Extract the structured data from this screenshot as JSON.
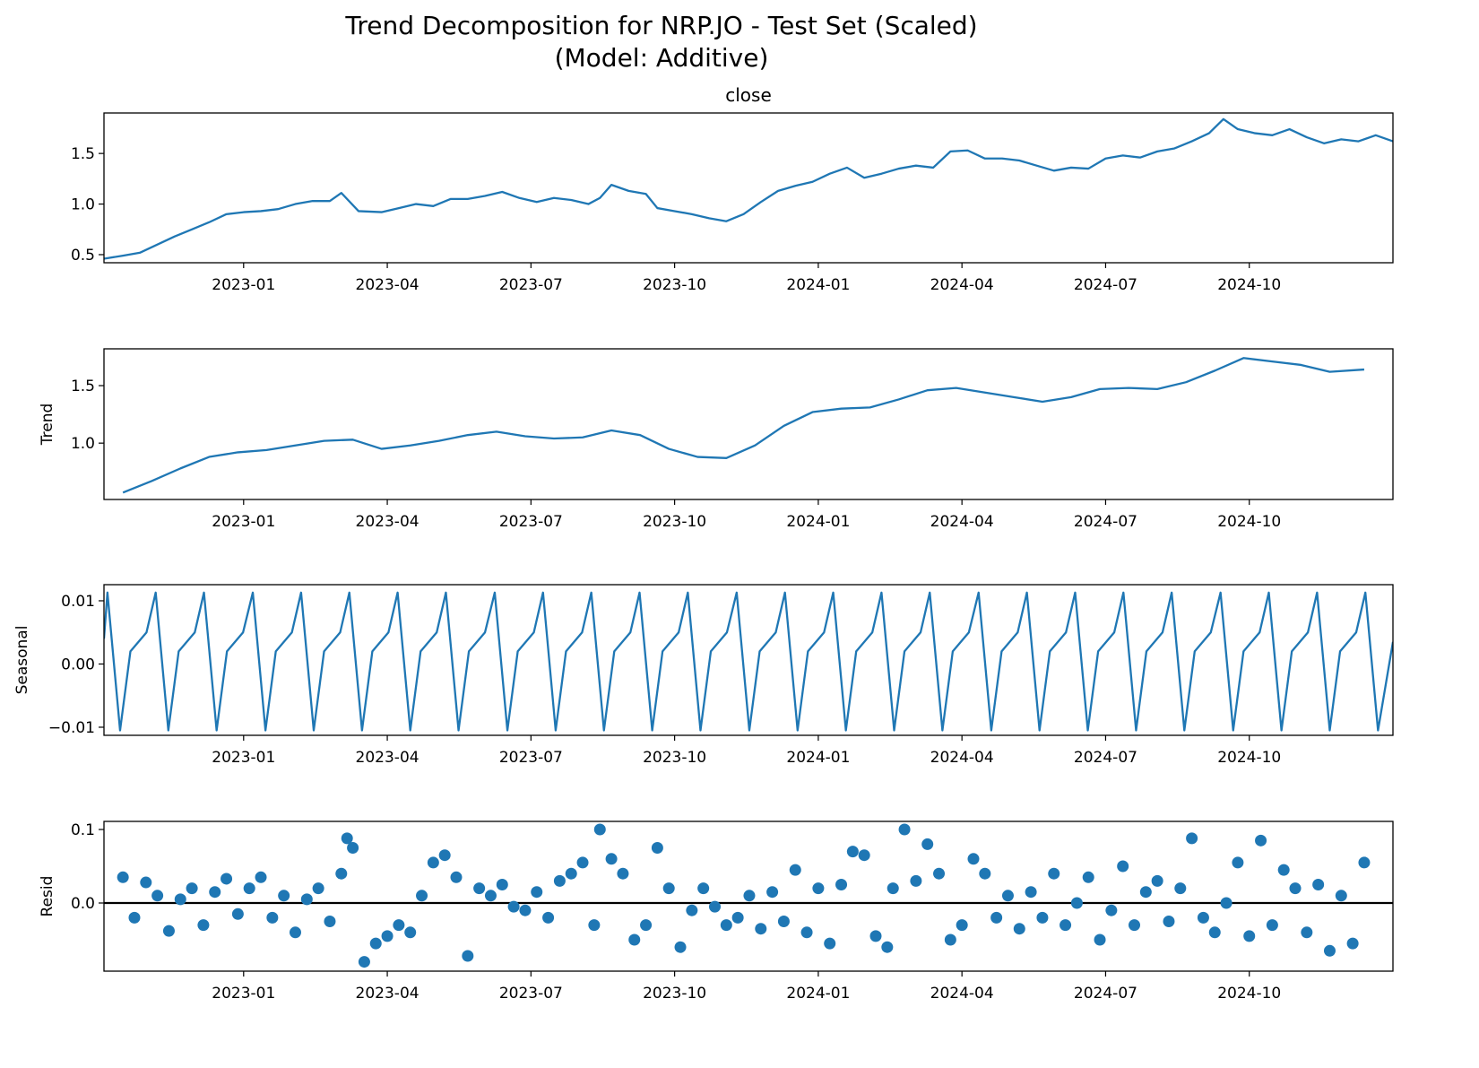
{
  "title": [
    "Trend Decomposition for NRP.JO - Test Set (Scaled)",
    "(Model: Additive)"
  ],
  "chart_data": [
    {
      "type": "line",
      "title": "close",
      "color": "#1f77b4",
      "xlim": [
        2022.757,
        2025.0
      ],
      "xticks": [
        {
          "value": 2023.0,
          "label": "2023-01"
        },
        {
          "value": 2023.25,
          "label": "2023-04"
        },
        {
          "value": 2023.5,
          "label": "2023-07"
        },
        {
          "value": 2023.75,
          "label": "2023-10"
        },
        {
          "value": 2024.0,
          "label": "2024-01"
        },
        {
          "value": 2024.25,
          "label": "2024-04"
        },
        {
          "value": 2024.5,
          "label": "2024-07"
        },
        {
          "value": 2024.75,
          "label": "2024-10"
        }
      ],
      "ylim": [
        0.42,
        1.9
      ],
      "yticks": [
        {
          "value": 0.5,
          "label": "0.5"
        },
        {
          "value": 1.0,
          "label": "1.0"
        },
        {
          "value": 1.5,
          "label": "1.5"
        }
      ],
      "x": [
        2022.757,
        2022.79,
        2022.82,
        2022.85,
        2022.88,
        2022.91,
        2022.94,
        2022.97,
        2023.0,
        2023.03,
        2023.06,
        2023.09,
        2023.12,
        2023.15,
        2023.17,
        2023.2,
        2023.24,
        2023.27,
        2023.3,
        2023.33,
        2023.36,
        2023.39,
        2023.42,
        2023.45,
        2023.48,
        2023.51,
        2023.54,
        2023.57,
        2023.6,
        2023.62,
        2023.64,
        2023.67,
        2023.7,
        2023.72,
        2023.75,
        2023.78,
        2023.81,
        2023.84,
        2023.87,
        2023.9,
        2023.93,
        2023.96,
        2023.99,
        2024.02,
        2024.05,
        2024.08,
        2024.11,
        2024.14,
        2024.17,
        2024.2,
        2024.23,
        2024.26,
        2024.29,
        2024.32,
        2024.35,
        2024.38,
        2024.41,
        2024.44,
        2024.47,
        2024.5,
        2024.53,
        2024.56,
        2024.59,
        2024.62,
        2024.65,
        2024.68,
        2024.705,
        2024.73,
        2024.76,
        2024.79,
        2024.82,
        2024.85,
        2024.88,
        2024.91,
        2024.94,
        2024.97,
        2025.0
      ],
      "values": [
        0.46,
        0.49,
        0.52,
        0.6,
        0.68,
        0.75,
        0.82,
        0.9,
        0.92,
        0.93,
        0.95,
        1.0,
        1.03,
        1.03,
        1.11,
        0.93,
        0.92,
        0.96,
        1.0,
        0.98,
        1.05,
        1.05,
        1.08,
        1.12,
        1.06,
        1.02,
        1.06,
        1.04,
        1.0,
        1.06,
        1.19,
        1.13,
        1.1,
        0.96,
        0.93,
        0.9,
        0.86,
        0.83,
        0.9,
        1.02,
        1.13,
        1.18,
        1.22,
        1.3,
        1.36,
        1.26,
        1.3,
        1.35,
        1.38,
        1.36,
        1.52,
        1.53,
        1.45,
        1.45,
        1.43,
        1.38,
        1.33,
        1.36,
        1.35,
        1.45,
        1.48,
        1.46,
        1.52,
        1.55,
        1.62,
        1.7,
        1.84,
        1.74,
        1.7,
        1.68,
        1.74,
        1.66,
        1.6,
        1.64,
        1.62,
        1.68,
        1.62
      ]
    },
    {
      "type": "line",
      "ylabel": "Trend",
      "color": "#1f77b4",
      "xlim": [
        2022.757,
        2025.0
      ],
      "xticks": [
        {
          "value": 2023.0,
          "label": "2023-01"
        },
        {
          "value": 2023.25,
          "label": "2023-04"
        },
        {
          "value": 2023.5,
          "label": "2023-07"
        },
        {
          "value": 2023.75,
          "label": "2023-10"
        },
        {
          "value": 2024.0,
          "label": "2024-01"
        },
        {
          "value": 2024.25,
          "label": "2024-04"
        },
        {
          "value": 2024.5,
          "label": "2024-07"
        },
        {
          "value": 2024.75,
          "label": "2024-10"
        }
      ],
      "ylim": [
        0.51,
        1.82
      ],
      "yticks": [
        {
          "value": 1.0,
          "label": "1.0"
        },
        {
          "value": 1.5,
          "label": "1.5"
        }
      ],
      "x": [
        2022.79,
        2022.84,
        2022.89,
        2022.94,
        2022.99,
        2023.04,
        2023.09,
        2023.14,
        2023.19,
        2023.24,
        2023.29,
        2023.34,
        2023.39,
        2023.44,
        2023.49,
        2023.54,
        2023.59,
        2023.64,
        2023.69,
        2023.74,
        2023.79,
        2023.84,
        2023.89,
        2023.94,
        2023.99,
        2024.04,
        2024.09,
        2024.14,
        2024.19,
        2024.24,
        2024.29,
        2024.34,
        2024.39,
        2024.44,
        2024.49,
        2024.54,
        2024.59,
        2024.64,
        2024.69,
        2024.74,
        2024.79,
        2024.84,
        2024.89,
        2024.95
      ],
      "values": [
        0.57,
        0.67,
        0.78,
        0.88,
        0.92,
        0.94,
        0.98,
        1.02,
        1.03,
        0.95,
        0.98,
        1.02,
        1.07,
        1.1,
        1.06,
        1.04,
        1.05,
        1.11,
        1.07,
        0.95,
        0.88,
        0.87,
        0.98,
        1.15,
        1.27,
        1.3,
        1.31,
        1.38,
        1.46,
        1.48,
        1.44,
        1.4,
        1.36,
        1.4,
        1.47,
        1.48,
        1.47,
        1.53,
        1.63,
        1.74,
        1.71,
        1.68,
        1.62,
        1.64
      ]
    },
    {
      "type": "line",
      "ylabel": "Seasonal",
      "color": "#1f77b4",
      "xlim": [
        2022.757,
        2025.0
      ],
      "xticks": [
        {
          "value": 2023.0,
          "label": "2023-01"
        },
        {
          "value": 2023.25,
          "label": "2023-04"
        },
        {
          "value": 2023.5,
          "label": "2023-07"
        },
        {
          "value": 2023.75,
          "label": "2023-10"
        },
        {
          "value": 2024.0,
          "label": "2024-01"
        },
        {
          "value": 2024.25,
          "label": "2024-04"
        },
        {
          "value": 2024.5,
          "label": "2024-07"
        },
        {
          "value": 2024.75,
          "label": "2024-10"
        }
      ],
      "ylim": [
        -0.01128,
        0.01255
      ],
      "yticks": [
        {
          "value": -0.01,
          "label": "−0.01"
        },
        {
          "value": 0.0,
          "label": "0.00"
        },
        {
          "value": 0.01,
          "label": "0.01"
        }
      ],
      "x": [
        2022.757,
        2022.763,
        2022.785,
        2022.803,
        2022.831,
        2022.847,
        2022.869,
        2022.887,
        2022.915,
        2022.931,
        2022.953,
        2022.971,
        2022.999,
        2023.016,
        2023.038,
        2023.056,
        2023.084,
        2023.1,
        2023.122,
        2023.14,
        2023.168,
        2023.184,
        2023.206,
        2023.224,
        2023.252,
        2023.268,
        2023.29,
        2023.308,
        2023.336,
        2023.352,
        2023.374,
        2023.392,
        2023.42,
        2023.437,
        2023.459,
        2023.477,
        2023.505,
        2023.521,
        2023.543,
        2023.561,
        2023.589,
        2023.605,
        2023.627,
        2023.645,
        2023.673,
        2023.689,
        2023.711,
        2023.729,
        2023.757,
        2023.773,
        2023.795,
        2023.813,
        2023.841,
        2023.858,
        2023.88,
        2023.898,
        2023.926,
        2023.942,
        2023.964,
        2023.982,
        2024.01,
        2024.026,
        2024.048,
        2024.066,
        2024.094,
        2024.11,
        2024.132,
        2024.15,
        2024.178,
        2024.194,
        2024.216,
        2024.234,
        2024.262,
        2024.279,
        2024.301,
        2024.319,
        2024.347,
        2024.363,
        2024.385,
        2024.403,
        2024.431,
        2024.447,
        2024.469,
        2024.487,
        2024.515,
        2024.531,
        2024.553,
        2024.571,
        2024.599,
        2024.615,
        2024.637,
        2024.655,
        2024.683,
        2024.7,
        2024.722,
        2024.74,
        2024.768,
        2024.784,
        2024.806,
        2024.824,
        2024.852,
        2024.868,
        2024.89,
        2024.908,
        2024.936,
        2024.952,
        2024.974,
        2025.0
      ],
      "values": [
        0.004,
        0.0113,
        -0.0105,
        0.002,
        0.005,
        0.0113,
        -0.0105,
        0.002,
        0.005,
        0.0113,
        -0.0105,
        0.002,
        0.005,
        0.0113,
        -0.0105,
        0.002,
        0.005,
        0.0113,
        -0.0105,
        0.002,
        0.005,
        0.0113,
        -0.0105,
        0.002,
        0.005,
        0.0113,
        -0.0105,
        0.002,
        0.005,
        0.0113,
        -0.0105,
        0.002,
        0.005,
        0.0113,
        -0.0105,
        0.002,
        0.005,
        0.0113,
        -0.0105,
        0.002,
        0.005,
        0.0113,
        -0.0105,
        0.002,
        0.005,
        0.0113,
        -0.0105,
        0.002,
        0.005,
        0.0113,
        -0.0105,
        0.002,
        0.005,
        0.0113,
        -0.0105,
        0.002,
        0.005,
        0.0113,
        -0.0105,
        0.002,
        0.005,
        0.0113,
        -0.0105,
        0.002,
        0.005,
        0.0113,
        -0.0105,
        0.002,
        0.005,
        0.0113,
        -0.0105,
        0.002,
        0.005,
        0.0113,
        -0.0105,
        0.002,
        0.005,
        0.0113,
        -0.0105,
        0.002,
        0.005,
        0.0113,
        -0.0105,
        0.002,
        0.005,
        0.0113,
        -0.0105,
        0.002,
        0.005,
        0.0113,
        -0.0105,
        0.002,
        0.005,
        0.0113,
        -0.0105,
        0.002,
        0.005,
        0.0113,
        -0.0105,
        0.002,
        0.005,
        0.0113,
        -0.0105,
        0.002,
        0.005,
        0.0113,
        -0.0105,
        0.0035
      ]
    },
    {
      "type": "scatter",
      "ylabel": "Resid",
      "color": "#1f77b4",
      "hline": 0,
      "xlim": [
        2022.757,
        2025.0
      ],
      "xticks": [
        {
          "value": 2023.0,
          "label": "2023-01"
        },
        {
          "value": 2023.25,
          "label": "2023-04"
        },
        {
          "value": 2023.5,
          "label": "2023-07"
        },
        {
          "value": 2023.75,
          "label": "2023-10"
        },
        {
          "value": 2024.0,
          "label": "2024-01"
        },
        {
          "value": 2024.25,
          "label": "2024-04"
        },
        {
          "value": 2024.5,
          "label": "2024-07"
        },
        {
          "value": 2024.75,
          "label": "2024-10"
        }
      ],
      "ylim": [
        -0.0927,
        0.111
      ],
      "yticks": [
        {
          "value": 0.0,
          "label": "0.0"
        },
        0.1
      ],
      "x": [
        2022.79,
        2022.81,
        2022.83,
        2022.85,
        2022.87,
        2022.89,
        2022.91,
        2022.93,
        2022.95,
        2022.97,
        2022.99,
        2023.01,
        2023.03,
        2023.05,
        2023.07,
        2023.09,
        2023.11,
        2023.13,
        2023.15,
        2023.17,
        2023.18,
        2023.19,
        2023.21,
        2023.23,
        2023.25,
        2023.27,
        2023.29,
        2023.31,
        2023.33,
        2023.35,
        2023.37,
        2023.39,
        2023.41,
        2023.43,
        2023.45,
        2023.47,
        2023.49,
        2023.51,
        2023.53,
        2023.55,
        2023.57,
        2023.59,
        2023.61,
        2023.62,
        2023.64,
        2023.66,
        2023.68,
        2023.7,
        2023.72,
        2023.74,
        2023.76,
        2023.78,
        2023.8,
        2023.82,
        2023.84,
        2023.86,
        2023.88,
        2023.9,
        2023.92,
        2023.94,
        2023.96,
        2023.98,
        2024.0,
        2024.02,
        2024.04,
        2024.06,
        2024.08,
        2024.1,
        2024.12,
        2024.13,
        2024.15,
        2024.17,
        2024.19,
        2024.21,
        2024.23,
        2024.25,
        2024.27,
        2024.29,
        2024.31,
        2024.33,
        2024.35,
        2024.37,
        2024.39,
        2024.41,
        2024.43,
        2024.45,
        2024.47,
        2024.49,
        2024.51,
        2024.53,
        2024.55,
        2024.57,
        2024.59,
        2024.61,
        2024.63,
        2024.65,
        2024.67,
        2024.69,
        2024.71,
        2024.73,
        2024.75,
        2024.77,
        2024.79,
        2024.81,
        2024.83,
        2024.85,
        2024.87,
        2024.89,
        2024.91,
        2024.93,
        2024.95
      ],
      "values": [
        0.035,
        -0.02,
        0.028,
        0.01,
        -0.038,
        0.005,
        0.02,
        -0.03,
        0.015,
        0.033,
        -0.015,
        0.02,
        0.035,
        -0.02,
        0.01,
        -0.04,
        0.005,
        0.02,
        -0.025,
        0.04,
        0.088,
        0.075,
        -0.08,
        -0.055,
        -0.045,
        -0.03,
        -0.04,
        0.01,
        0.055,
        0.065,
        0.035,
        -0.072,
        0.02,
        0.01,
        0.025,
        -0.005,
        -0.01,
        0.015,
        -0.02,
        0.03,
        0.04,
        0.055,
        -0.03,
        0.1,
        0.06,
        0.04,
        -0.05,
        -0.03,
        0.075,
        0.02,
        -0.06,
        -0.01,
        0.02,
        -0.005,
        -0.03,
        -0.02,
        0.01,
        -0.035,
        0.015,
        -0.025,
        0.045,
        -0.04,
        0.02,
        -0.055,
        0.025,
        0.07,
        0.065,
        -0.045,
        -0.06,
        0.02,
        0.1,
        0.03,
        0.08,
        0.04,
        -0.05,
        -0.03,
        0.06,
        0.04,
        -0.02,
        0.01,
        -0.035,
        0.015,
        -0.02,
        0.04,
        -0.03,
        0.0,
        0.035,
        -0.05,
        -0.01,
        0.05,
        -0.03,
        0.015,
        0.03,
        -0.025,
        0.02,
        0.088,
        -0.02,
        -0.04,
        0.0,
        0.055,
        -0.045,
        0.085,
        -0.03,
        0.045,
        0.02,
        -0.04,
        0.025,
        -0.065,
        0.01,
        -0.055,
        0.055
      ]
    }
  ]
}
